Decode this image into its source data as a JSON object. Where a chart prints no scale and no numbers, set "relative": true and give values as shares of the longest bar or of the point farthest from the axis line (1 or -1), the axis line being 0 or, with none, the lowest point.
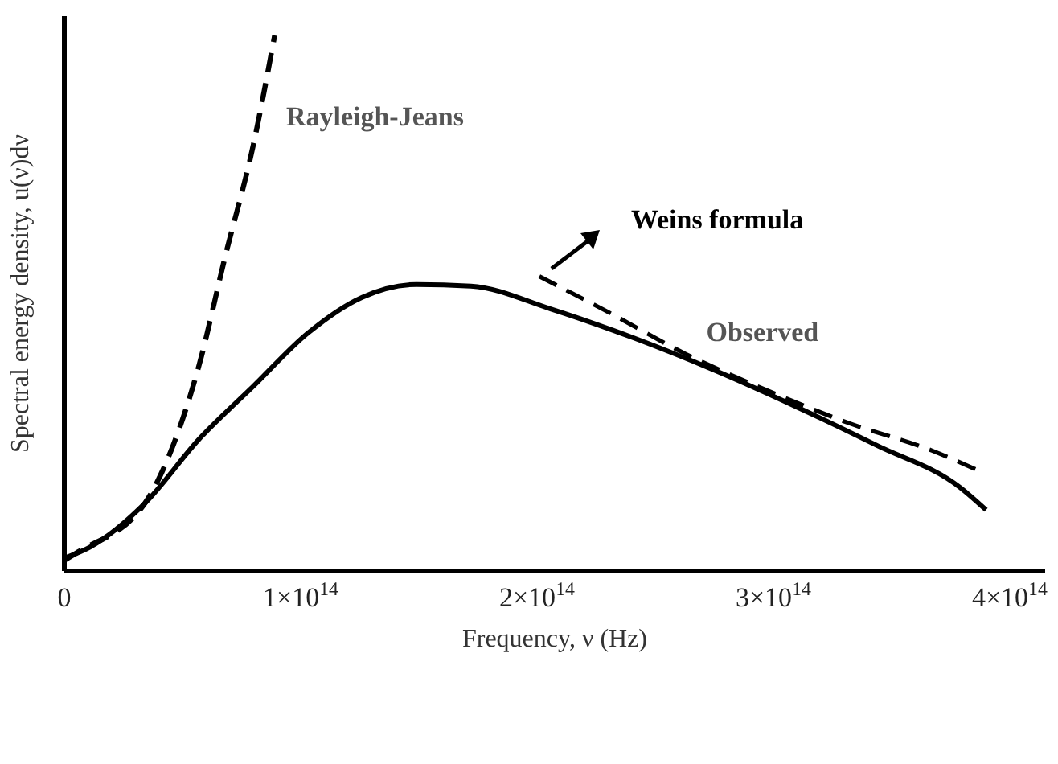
{
  "chart_data": {
    "type": "line",
    "xlabel": "Frequency, ν (Hz)",
    "ylabel": "Spectral energy density, u(ν)dν",
    "relative": true,
    "xlim": [
      0,
      415000000000000.0
    ],
    "xticks": [
      0,
      {
        "value": 100000000000000.0,
        "label": "1×10$^{14}$"
      },
      {
        "value": 200000000000000.0,
        "label": "2×10$^{14}$"
      },
      {
        "value": 300000000000000.0,
        "label": "3×10$^{14}$"
      },
      {
        "value": 400000000000000.0,
        "label": "4×10$^{14}$"
      }
    ],
    "marker": "none",
    "series": [
      {
        "name": "Rayleigh-Jeans",
        "color": "#000000",
        "line_style": "dashed",
        "x": [
          0,
          6000000000000.0,
          34000000000000.0,
          46000000000000.0,
          57000000000000.0,
          68000000000000.0,
          80000000000000.0,
          89000000000000.0
        ],
        "values": [
          0.02,
          0.036,
          0.126,
          0.234,
          0.384,
          0.586,
          0.796,
          1
        ]
      },
      {
        "name": "Observed",
        "color": "#000000",
        "line_style": "solid",
        "x": [
          0,
          11000000000000.0,
          34000000000000.0,
          57000000000000.0,
          80000000000000.0,
          103000000000000.0,
          126000000000000.0,
          149000000000000.0,
          172000000000000.0,
          206000000000000.0,
          241000000000000.0,
          275000000000000.0,
          310000000000000.0,
          344000000000000.0,
          379000000000000.0,
          390000000000000.0
        ],
        "values": [
          0.024,
          0.045,
          0.126,
          0.246,
          0.345,
          0.444,
          0.511,
          0.535,
          0.532,
          0.489,
          0.435,
          0.375,
          0.306,
          0.234,
          0.156,
          0.114
        ]
      },
      {
        "name": "Weins formula",
        "color": "#000000",
        "line_style": "dashed",
        "x": [
          201000000000000.0,
          229000000000000.0,
          263000000000000.0,
          298000000000000.0,
          332000000000000.0,
          367000000000000.0,
          386000000000000.0
        ],
        "values": [
          0.55,
          0.486,
          0.405,
          0.336,
          0.276,
          0.225,
          0.189
        ]
      }
    ]
  }
}
